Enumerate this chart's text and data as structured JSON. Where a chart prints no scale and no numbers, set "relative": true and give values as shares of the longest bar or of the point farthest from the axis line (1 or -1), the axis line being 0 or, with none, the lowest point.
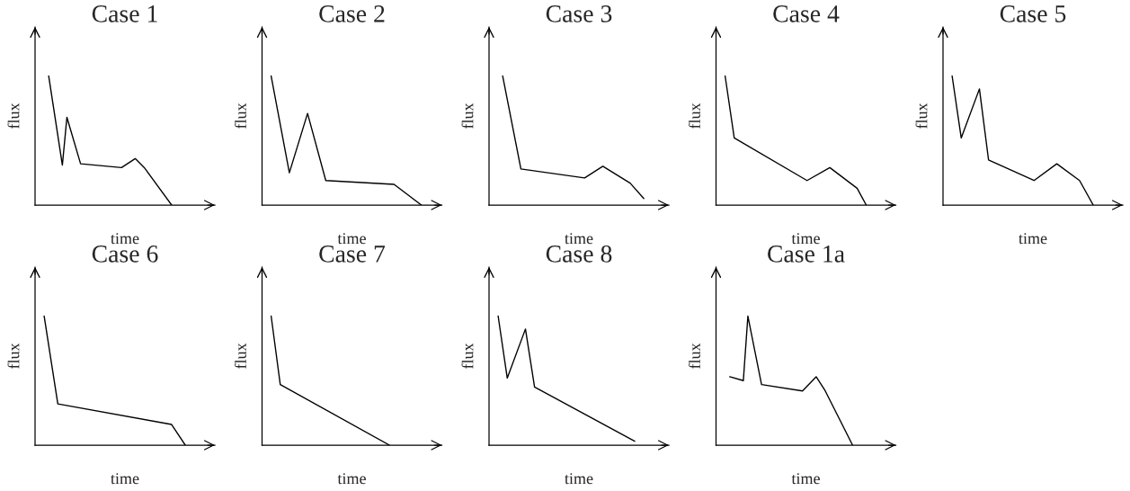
{
  "chart_data": [
    {
      "type": "line",
      "title": "Case 1",
      "xlabel": "time",
      "ylabel": "flux",
      "relative": true,
      "tick_labels": false,
      "color": "#000000",
      "categories": [
        null,
        null,
        null,
        null,
        null,
        null,
        null,
        null,
        null,
        null,
        null,
        null,
        null,
        null,
        null,
        null,
        null,
        null,
        null,
        null,
        null,
        null,
        null,
        null,
        null,
        null,
        null,
        null,
        null,
        null,
        null,
        null,
        null,
        null,
        null,
        null,
        null,
        null,
        null,
        null
      ],
      "values": [
        null,
        null,
        null,
        1,
        null,
        null,
        0.31,
        0.68,
        null,
        null,
        0.32,
        null,
        null,
        null,
        null,
        null,
        null,
        null,
        null,
        0.29,
        null,
        null,
        0.36,
        null,
        0.29,
        null,
        null,
        null,
        null,
        null,
        0,
        null,
        null,
        null,
        null,
        null,
        null,
        null,
        null,
        null
      ]
    },
    {
      "type": "line",
      "title": "Case 2",
      "xlabel": "time",
      "ylabel": "flux",
      "relative": true,
      "tick_labels": false,
      "color": "#000000",
      "categories": [
        null,
        null,
        null,
        null,
        null,
        null,
        null,
        null,
        null,
        null,
        null,
        null,
        null,
        null,
        null,
        null,
        null,
        null,
        null,
        null,
        null,
        null,
        null,
        null,
        null,
        null,
        null,
        null,
        null,
        null,
        null,
        null,
        null,
        null,
        null,
        null,
        null,
        null,
        null,
        null
      ],
      "values": [
        null,
        null,
        1,
        null,
        null,
        null,
        0.25,
        null,
        null,
        null,
        0.71,
        null,
        null,
        null,
        0.19,
        null,
        null,
        null,
        null,
        null,
        null,
        null,
        null,
        null,
        null,
        null,
        null,
        null,
        null,
        0.16,
        null,
        null,
        null,
        null,
        null,
        0,
        null,
        null,
        null,
        null
      ]
    },
    {
      "type": "line",
      "title": "Case 3",
      "xlabel": "time",
      "ylabel": "flux",
      "relative": true,
      "tick_labels": false,
      "color": "#000000",
      "categories": [
        null,
        null,
        null,
        null,
        null,
        null,
        null,
        null,
        null,
        null,
        null,
        null,
        null,
        null,
        null,
        null,
        null,
        null,
        null,
        null,
        null,
        null,
        null,
        null,
        null,
        null,
        null,
        null,
        null,
        null,
        null,
        null,
        null,
        null,
        null,
        null,
        null,
        null,
        null,
        null
      ],
      "values": [
        null,
        null,
        null,
        1,
        null,
        null,
        null,
        0.28,
        null,
        null,
        null,
        null,
        null,
        null,
        null,
        null,
        null,
        null,
        null,
        null,
        null,
        0.21,
        null,
        null,
        null,
        0.3,
        null,
        null,
        null,
        null,
        null,
        0.17,
        null,
        null,
        0.05,
        null,
        null,
        null,
        null,
        null
      ]
    },
    {
      "type": "line",
      "title": "Case 4",
      "xlabel": "time",
      "ylabel": "flux",
      "relative": true,
      "tick_labels": false,
      "color": "#000000",
      "categories": [
        null,
        null,
        null,
        null,
        null,
        null,
        null,
        null,
        null,
        null,
        null,
        null,
        null,
        null,
        null,
        null,
        null,
        null,
        null,
        null,
        null,
        null,
        null,
        null,
        null,
        null,
        null,
        null,
        null,
        null,
        null,
        null,
        null,
        null,
        null,
        null,
        null,
        null,
        null,
        null
      ],
      "values": [
        null,
        null,
        1,
        null,
        0.52,
        null,
        null,
        null,
        null,
        null,
        null,
        null,
        null,
        null,
        null,
        null,
        null,
        null,
        null,
        null,
        0.19,
        null,
        null,
        null,
        null,
        0.29,
        null,
        null,
        null,
        null,
        null,
        0.13,
        null,
        0,
        null,
        null,
        null,
        null,
        null,
        null
      ]
    },
    {
      "type": "line",
      "title": "Case 5",
      "xlabel": "time",
      "ylabel": "flux",
      "relative": true,
      "tick_labels": false,
      "color": "#000000",
      "categories": [
        null,
        null,
        null,
        null,
        null,
        null,
        null,
        null,
        null,
        null,
        null,
        null,
        null,
        null,
        null,
        null,
        null,
        null,
        null,
        null,
        null,
        null,
        null,
        null,
        null,
        null,
        null,
        null,
        null,
        null,
        null,
        null,
        null,
        null,
        null,
        null,
        null,
        null,
        null,
        null
      ],
      "values": [
        null,
        null,
        1,
        null,
        0.52,
        null,
        null,
        null,
        0.9,
        null,
        0.35,
        null,
        null,
        null,
        null,
        null,
        null,
        null,
        null,
        null,
        0.19,
        null,
        null,
        null,
        null,
        0.32,
        null,
        null,
        null,
        null,
        0.19,
        null,
        null,
        0,
        null,
        null,
        null,
        null,
        null,
        null
      ]
    },
    {
      "type": "line",
      "title": "Case 6",
      "xlabel": "time",
      "ylabel": "flux",
      "relative": true,
      "tick_labels": false,
      "color": "#000000",
      "categories": [
        null,
        null,
        null,
        null,
        null,
        null,
        null,
        null,
        null,
        null,
        null,
        null,
        null,
        null,
        null,
        null,
        null,
        null,
        null,
        null,
        null,
        null,
        null,
        null,
        null,
        null,
        null,
        null,
        null,
        null,
        null,
        null,
        null,
        null,
        null,
        null,
        null,
        null,
        null,
        null
      ],
      "values": [
        null,
        null,
        1,
        null,
        null,
        0.32,
        null,
        null,
        null,
        null,
        null,
        null,
        null,
        null,
        null,
        null,
        null,
        null,
        null,
        null,
        null,
        null,
        null,
        null,
        null,
        null,
        null,
        null,
        null,
        null,
        0.16,
        null,
        null,
        0,
        null,
        null,
        null,
        null,
        null,
        null
      ]
    },
    {
      "type": "line",
      "title": "Case 7",
      "xlabel": "time",
      "ylabel": "flux",
      "relative": true,
      "tick_labels": false,
      "color": "#000000",
      "categories": [
        null,
        null,
        null,
        null,
        null,
        null,
        null,
        null,
        null,
        null,
        null,
        null,
        null,
        null,
        null,
        null,
        null,
        null,
        null,
        null,
        null,
        null,
        null,
        null,
        null,
        null,
        null,
        null,
        null,
        null,
        null,
        null,
        null,
        null,
        null,
        null,
        null,
        null,
        null,
        null
      ],
      "values": [
        null,
        null,
        1,
        null,
        0.47,
        null,
        null,
        null,
        null,
        null,
        null,
        null,
        null,
        null,
        null,
        null,
        null,
        null,
        null,
        null,
        null,
        null,
        null,
        null,
        null,
        null,
        null,
        null,
        0,
        null,
        null,
        null,
        null,
        null,
        null,
        null,
        null,
        null,
        null,
        null
      ]
    },
    {
      "type": "line",
      "title": "Case 8",
      "xlabel": "time",
      "ylabel": "flux",
      "relative": true,
      "tick_labels": false,
      "color": "#000000",
      "categories": [
        null,
        null,
        null,
        null,
        null,
        null,
        null,
        null,
        null,
        null,
        null,
        null,
        null,
        null,
        null,
        null,
        null,
        null,
        null,
        null,
        null,
        null,
        null,
        null,
        null,
        null,
        null,
        null,
        null,
        null,
        null,
        null,
        null,
        null,
        null,
        null,
        null,
        null,
        null,
        null
      ],
      "values": [
        null,
        null,
        1,
        null,
        0.52,
        null,
        null,
        null,
        0.9,
        null,
        0.45,
        null,
        null,
        null,
        null,
        null,
        null,
        null,
        null,
        null,
        null,
        null,
        null,
        null,
        null,
        null,
        null,
        null,
        null,
        null,
        null,
        null,
        0.03,
        null,
        null,
        null,
        null,
        null,
        null,
        null
      ]
    },
    {
      "type": "line",
      "title": "Case 1a",
      "xlabel": "time",
      "ylabel": "flux",
      "relative": true,
      "tick_labels": false,
      "color": "#000000",
      "categories": [
        null,
        null,
        null,
        null,
        null,
        null,
        null,
        null,
        null,
        null,
        null,
        null,
        null,
        null,
        null,
        null,
        null,
        null,
        null,
        null,
        null,
        null,
        null,
        null,
        null,
        null,
        null,
        null,
        null,
        null,
        null,
        null,
        null,
        null,
        null,
        null,
        null,
        null,
        null,
        null
      ],
      "values": [
        null,
        null,
        null,
        0.53,
        null,
        null,
        0.5,
        1,
        null,
        null,
        0.47,
        null,
        null,
        null,
        null,
        null,
        null,
        null,
        null,
        0.42,
        null,
        null,
        0.53,
        null,
        0.42,
        null,
        null,
        null,
        null,
        null,
        0,
        null,
        null,
        null,
        null,
        null,
        null,
        null,
        null,
        null
      ]
    }
  ]
}
